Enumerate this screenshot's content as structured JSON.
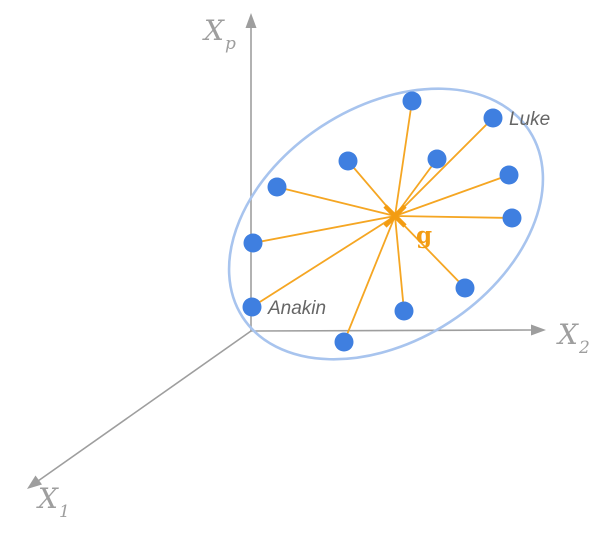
{
  "axes": {
    "xp": {
      "main": "X",
      "sub": "p"
    },
    "x2": {
      "main": "X",
      "sub": "2"
    },
    "x1": {
      "main": "X",
      "sub": "1"
    }
  },
  "centroid": {
    "label": "g"
  },
  "points": {
    "luke": "Luke",
    "anakin": "Anakin"
  },
  "colors": {
    "axis": "#9e9e9e",
    "ellipse": "#a8c4ee",
    "spoke": "#f5a623",
    "point": "#3f7fe0",
    "centroid": "#f39c12",
    "label": "#666666"
  }
}
